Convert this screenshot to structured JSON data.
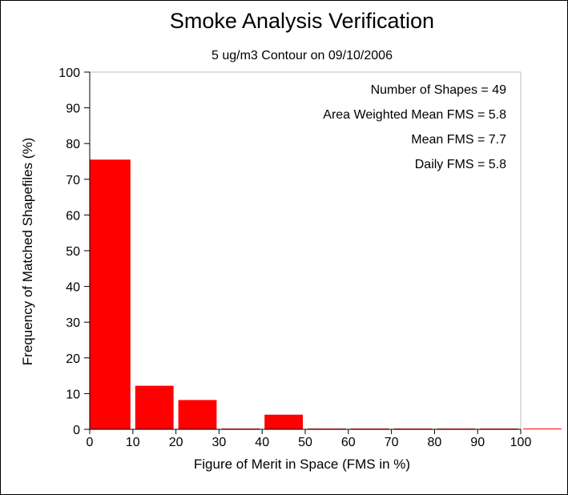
{
  "chart_data": {
    "type": "bar",
    "title": "Smoke Analysis Verification",
    "subtitle": "5 ug/m3 Contour on 09/10/2006",
    "xlabel": "Figure of Merit in Space (FMS in %)",
    "ylabel": "Frequency of Matched Shapefiles (%)",
    "xlim": [
      0,
      100
    ],
    "ylim": [
      0,
      100
    ],
    "x_ticks": [
      0,
      10,
      20,
      30,
      40,
      50,
      60,
      70,
      80,
      90,
      100
    ],
    "y_ticks": [
      0,
      10,
      20,
      30,
      40,
      50,
      60,
      70,
      80,
      90,
      100
    ],
    "bins": [
      {
        "from": 0,
        "to": 10,
        "value": 75.5
      },
      {
        "from": 10,
        "to": 20,
        "value": 12.2
      },
      {
        "from": 20,
        "to": 30,
        "value": 8.2
      },
      {
        "from": 30,
        "to": 40,
        "value": 0
      },
      {
        "from": 40,
        "to": 50,
        "value": 4.1
      },
      {
        "from": 50,
        "to": 60,
        "value": 0
      },
      {
        "from": 60,
        "to": 70,
        "value": 0
      },
      {
        "from": 70,
        "to": 80,
        "value": 0
      },
      {
        "from": 80,
        "to": 90,
        "value": 0
      },
      {
        "from": 90,
        "to": 100,
        "value": 0
      },
      {
        "from": 100,
        "to": 110,
        "value": 0
      }
    ],
    "bar_color": "#ff0000",
    "grid": false,
    "annotations": [
      "Number of Shapes = 49",
      "Area Weighted Mean FMS = 5.8",
      "Mean FMS = 7.7",
      "Daily FMS = 5.8"
    ]
  }
}
